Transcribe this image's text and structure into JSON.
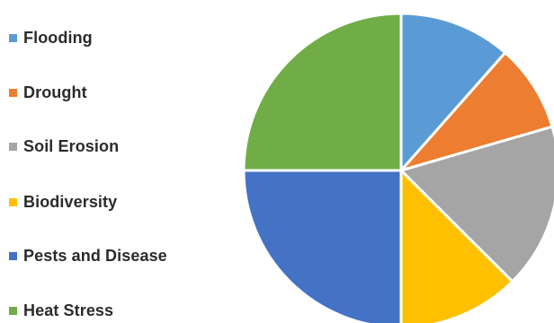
{
  "chart_data": {
    "type": "pie",
    "title": "",
    "legend_position": "left",
    "start_angle_degrees": 0,
    "direction": "clockwise",
    "series": [
      {
        "name": "Flooding",
        "value": 11.5,
        "color": "#5b9bd5"
      },
      {
        "name": "Drought",
        "value": 9.0,
        "color": "#ed7d31"
      },
      {
        "name": "Soil Erosion",
        "value": 17.0,
        "color": "#a5a5a5"
      },
      {
        "name": "Biodiversity",
        "value": 12.5,
        "color": "#ffc000"
      },
      {
        "name": "Pests and Disease",
        "value": 25.0,
        "color": "#4472c4"
      },
      {
        "name": "Heat Stress",
        "value": 25.0,
        "color": "#70ad47"
      }
    ]
  }
}
